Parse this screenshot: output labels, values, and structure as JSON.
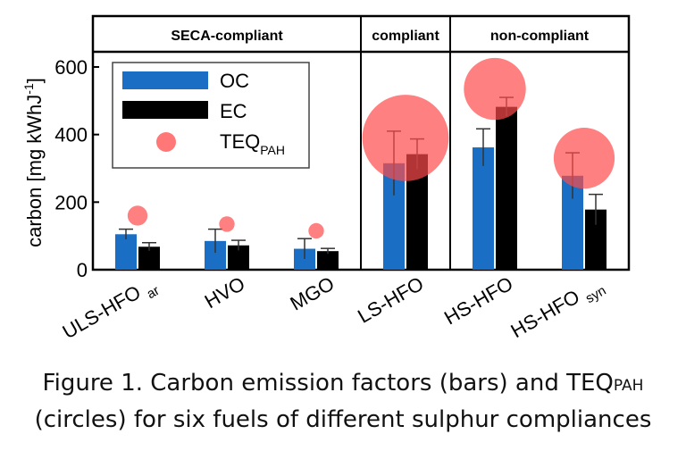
{
  "caption": {
    "line1_pre": "Figure 1. Carbon emission factors (bars) and TEQ",
    "line1_sub": "PAH",
    "line2": "(circles) for six fuels of different sulphur compliances"
  },
  "chart_data": {
    "type": "bar",
    "ylabel": "carbon [mg kWhJ",
    "ylabel_sup": "-1",
    "ylabel_close": "]",
    "ylim": [
      0,
      650
    ],
    "yticks": [
      0,
      200,
      400,
      600
    ],
    "groups": [
      {
        "label": "SECA-compliant",
        "span": [
          0,
          2
        ]
      },
      {
        "label": "compliant",
        "span": [
          3,
          3
        ]
      },
      {
        "label": "non-compliant",
        "span": [
          4,
          5
        ]
      }
    ],
    "categories": [
      {
        "main": "ULS-HFO",
        "sub": "ar"
      },
      {
        "main": "HVO",
        "sub": ""
      },
      {
        "main": "MGO",
        "sub": ""
      },
      {
        "main": "LS-HFO",
        "sub": ""
      },
      {
        "main": "HS-HFO",
        "sub": ""
      },
      {
        "main": "HS-HFO",
        "sub": "syn"
      }
    ],
    "series": [
      {
        "name": "OC",
        "color": "#1a6fc4",
        "values": [
          105,
          85,
          62,
          315,
          362,
          278
        ],
        "errors": [
          15,
          35,
          30,
          95,
          55,
          68
        ]
      },
      {
        "name": "EC",
        "color": "#000000",
        "values": [
          68,
          72,
          55,
          342,
          482,
          178
        ],
        "errors": [
          12,
          15,
          8,
          45,
          28,
          45
        ]
      }
    ],
    "teq": {
      "name": "TEQ",
      "name_sub": "PAH",
      "color": "#ff4a4a",
      "center_values": [
        160,
        135,
        115,
        390,
        535,
        330
      ],
      "relative_size": [
        0.18,
        0.14,
        0.14,
        0.78,
        0.56,
        0.55
      ]
    },
    "legend": "top-left"
  }
}
